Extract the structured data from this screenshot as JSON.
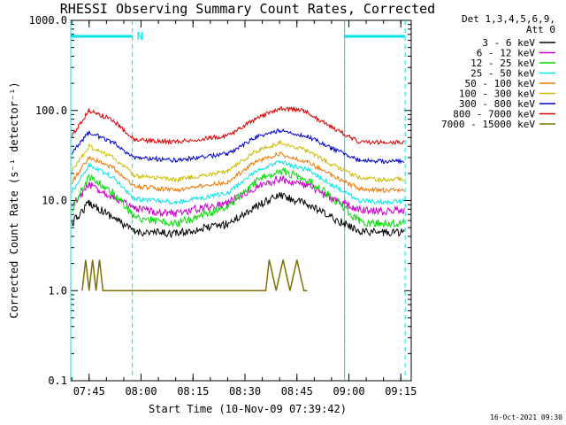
{
  "chart_data": {
    "type": "line",
    "title": "RHESSI Observing Summary Count Rates, Corrected",
    "xlabel": "Start Time (10-Nov-09 07:39:42)",
    "ylabel": "Corrected Count Rate (s⁻¹ detector⁻¹)",
    "y_scale": "log",
    "ylim": [
      0.1,
      1000.0
    ],
    "y_ticks": [
      "1000.0",
      "100.0",
      "10.0",
      "1.0",
      "0.1"
    ],
    "x_time_range": [
      "07:39:42",
      "09:18:00"
    ],
    "x_ticks": [
      "07:45",
      "08:00",
      "08:15",
      "08:30",
      "08:45",
      "09:00",
      "09:15"
    ],
    "legend_header": [
      "Det 1,3,4,5,6,9,",
      "Att 0"
    ],
    "legend_position": "right",
    "grid": false,
    "series": [
      {
        "name": "3 - 6 keV",
        "color": "#000000",
        "points": [
          [
            "07:40",
            5.5
          ],
          [
            "07:45",
            9.5
          ],
          [
            "07:52",
            6.5
          ],
          [
            "07:58",
            4.5
          ],
          [
            "08:10",
            4.3
          ],
          [
            "08:25",
            5.5
          ],
          [
            "08:33",
            8.5
          ],
          [
            "08:40",
            11.5
          ],
          [
            "08:48",
            9.0
          ],
          [
            "08:55",
            6.5
          ],
          [
            "09:03",
            4.6
          ],
          [
            "09:10",
            4.4
          ],
          [
            "09:16",
            4.5
          ]
        ]
      },
      {
        "name": "6 - 12 keV",
        "color": "#cc00cc",
        "points": [
          [
            "07:40",
            8.5
          ],
          [
            "07:45",
            15.0
          ],
          [
            "07:52",
            11.0
          ],
          [
            "07:58",
            8.0
          ],
          [
            "08:10",
            7.2
          ],
          [
            "08:25",
            9.5
          ],
          [
            "08:33",
            14.0
          ],
          [
            "08:40",
            17.5
          ],
          [
            "08:48",
            14.5
          ],
          [
            "08:55",
            10.5
          ],
          [
            "09:03",
            7.8
          ],
          [
            "09:10",
            7.6
          ],
          [
            "09:16",
            7.8
          ]
        ]
      },
      {
        "name": "12 - 25 keV",
        "color": "#00dd00",
        "points": [
          [
            "07:40",
            8.0
          ],
          [
            "07:45",
            18.5
          ],
          [
            "07:52",
            12.0
          ],
          [
            "07:58",
            6.5
          ],
          [
            "08:10",
            5.5
          ],
          [
            "08:25",
            8.5
          ],
          [
            "08:33",
            16.0
          ],
          [
            "08:40",
            22.0
          ],
          [
            "08:48",
            17.0
          ],
          [
            "08:55",
            11.0
          ],
          [
            "09:03",
            5.8
          ],
          [
            "09:10",
            5.5
          ],
          [
            "09:16",
            5.6
          ]
        ]
      },
      {
        "name": "25 - 50 keV",
        "color": "#00e5e5",
        "points": [
          [
            "07:40",
            12.5
          ],
          [
            "07:45",
            25.0
          ],
          [
            "07:52",
            18.0
          ],
          [
            "07:58",
            10.5
          ],
          [
            "08:10",
            9.5
          ],
          [
            "08:25",
            12.0
          ],
          [
            "08:33",
            21.0
          ],
          [
            "08:40",
            27.0
          ],
          [
            "08:48",
            22.0
          ],
          [
            "08:55",
            15.0
          ],
          [
            "09:03",
            10.0
          ],
          [
            "09:10",
            9.6
          ],
          [
            "09:16",
            9.8
          ]
        ]
      },
      {
        "name": "50 - 100 keV",
        "color": "#ee7700",
        "points": [
          [
            "07:40",
            16.0
          ],
          [
            "07:45",
            30.0
          ],
          [
            "07:52",
            23.0
          ],
          [
            "07:58",
            14.5
          ],
          [
            "08:10",
            13.0
          ],
          [
            "08:25",
            16.0
          ],
          [
            "08:33",
            27.0
          ],
          [
            "08:40",
            33.0
          ],
          [
            "08:48",
            27.0
          ],
          [
            "08:55",
            19.0
          ],
          [
            "09:03",
            13.5
          ],
          [
            "09:10",
            13.0
          ],
          [
            "09:16",
            13.2
          ]
        ]
      },
      {
        "name": "100 - 300 keV",
        "color": "#ccbb00",
        "points": [
          [
            "07:40",
            21.0
          ],
          [
            "07:45",
            40.0
          ],
          [
            "07:52",
            30.0
          ],
          [
            "07:58",
            19.0
          ],
          [
            "08:10",
            17.0
          ],
          [
            "08:25",
            21.0
          ],
          [
            "08:33",
            35.0
          ],
          [
            "08:40",
            44.0
          ],
          [
            "08:48",
            36.0
          ],
          [
            "08:55",
            25.0
          ],
          [
            "09:03",
            18.0
          ],
          [
            "09:10",
            17.0
          ],
          [
            "09:16",
            17.5
          ]
        ]
      },
      {
        "name": "300 - 800 keV",
        "color": "#0000cc",
        "points": [
          [
            "07:40",
            34.0
          ],
          [
            "07:45",
            57.0
          ],
          [
            "07:52",
            44.0
          ],
          [
            "07:58",
            30.0
          ],
          [
            "08:10",
            28.0
          ],
          [
            "08:25",
            33.0
          ],
          [
            "08:33",
            50.0
          ],
          [
            "08:40",
            60.0
          ],
          [
            "08:48",
            52.0
          ],
          [
            "08:55",
            38.0
          ],
          [
            "09:03",
            28.0
          ],
          [
            "09:10",
            27.0
          ],
          [
            "09:16",
            27.5
          ]
        ]
      },
      {
        "name": "800 - 7000 keV",
        "color": "#dd0000",
        "points": [
          [
            "07:40",
            52.0
          ],
          [
            "07:45",
            100.0
          ],
          [
            "07:52",
            78.0
          ],
          [
            "07:58",
            47.0
          ],
          [
            "08:10",
            45.0
          ],
          [
            "08:25",
            52.0
          ],
          [
            "08:33",
            80.0
          ],
          [
            "08:40",
            105.0
          ],
          [
            "08:47",
            100.0
          ],
          [
            "08:55",
            65.0
          ],
          [
            "09:03",
            45.0
          ],
          [
            "09:10",
            44.0
          ],
          [
            "09:16",
            45.0
          ]
        ]
      },
      {
        "name": "7000 - 15000 keV",
        "color": "#807000",
        "points": [
          [
            "07:43",
            1.0
          ],
          [
            "07:44",
            2.2
          ],
          [
            "07:45",
            1.0
          ],
          [
            "07:46",
            2.2
          ],
          [
            "07:47",
            1.0
          ],
          [
            "07:48",
            2.2
          ],
          [
            "07:49",
            1.0
          ],
          [
            "07:55",
            1.0
          ],
          [
            "08:30",
            1.0
          ],
          [
            "08:36",
            1.0
          ],
          [
            "08:37",
            2.2
          ],
          [
            "08:39",
            1.0
          ],
          [
            "08:41",
            2.2
          ],
          [
            "08:43",
            1.0
          ],
          [
            "08:45",
            2.2
          ],
          [
            "08:47",
            1.0
          ],
          [
            "08:48",
            1.0
          ]
        ]
      }
    ],
    "markers": {
      "label": "N",
      "color": "#00e5e5",
      "intervals": [
        [
          "07:39:42",
          "07:57:30"
        ],
        [
          "08:58:45",
          "09:16:15"
        ]
      ],
      "boundaries": [
        "07:39:42",
        "07:57:30",
        "08:58:45",
        "09:16:15"
      ]
    }
  },
  "footer": {
    "timestamp": "16-Oct-2021 09:30"
  }
}
